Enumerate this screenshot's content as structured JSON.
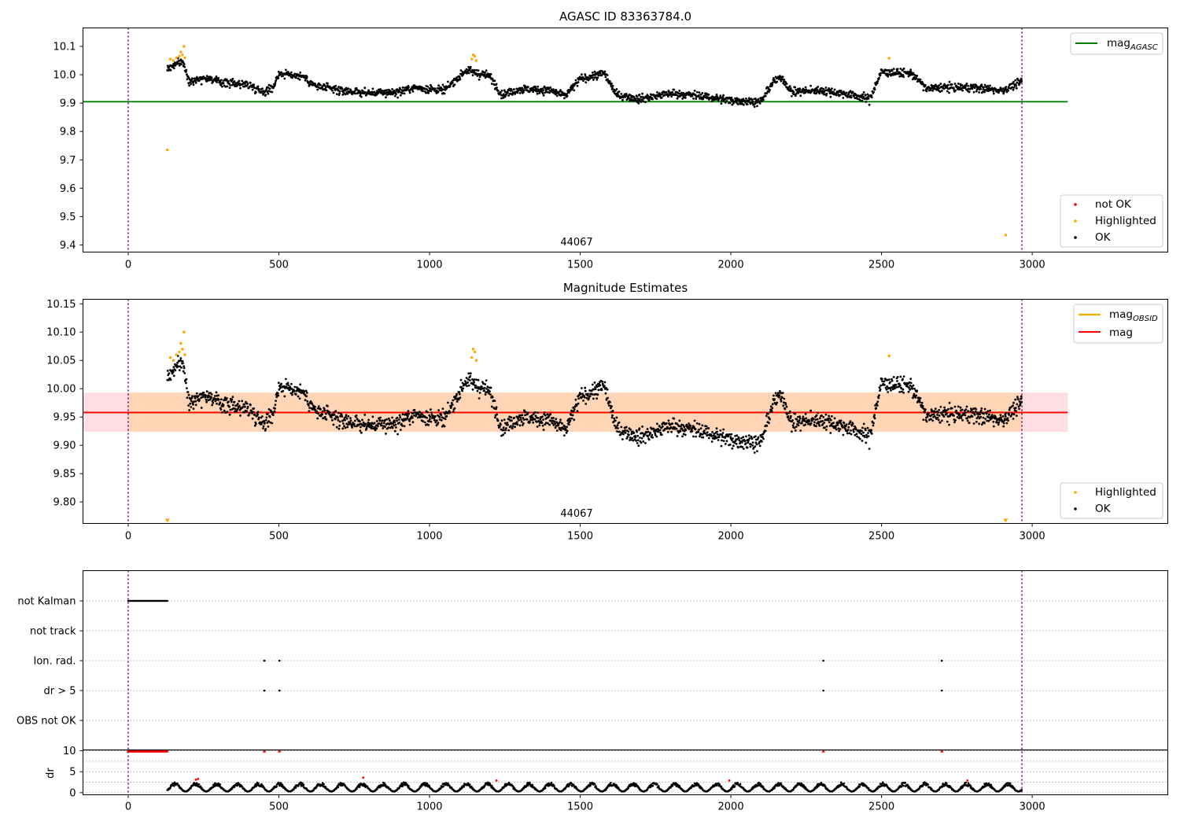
{
  "figure": {
    "panel1": {
      "title": "AGASC ID 83363784.0",
      "obsid_label": "44067",
      "legend_top": [
        "mag"
      ],
      "legend_top_sub": [
        "AGASC"
      ],
      "legend_bottom": [
        "not OK",
        "Highlighted",
        "OK"
      ],
      "xticks": [
        "0",
        "500",
        "1000",
        "1500",
        "2000",
        "2500",
        "3000"
      ],
      "yticks": [
        "9.4",
        "9.5",
        "9.6",
        "9.7",
        "9.8",
        "9.9",
        "10.0",
        "10.1"
      ]
    },
    "panel2": {
      "title": "Magnitude Estimates",
      "obsid_label": "44067",
      "legend_top": [
        "mag",
        "mag"
      ],
      "legend_top_sub": [
        "OBSID",
        ""
      ],
      "legend_bottom": [
        "Highlighted",
        "OK"
      ],
      "xticks": [
        "0",
        "500",
        "1000",
        "1500",
        "2000",
        "2500",
        "3000"
      ],
      "yticks": [
        "9.80",
        "9.85",
        "9.90",
        "9.95",
        "10.00",
        "10.05",
        "10.10",
        "10.15"
      ]
    },
    "panel3": {
      "flag_labels": [
        "not Kalman",
        "not track",
        "Ion. rad.",
        "dr > 5",
        "OBS not OK"
      ],
      "dr_ylabel": "dr",
      "dr_yticks": [
        "0",
        "5",
        "10"
      ],
      "xticks": [
        "0",
        "500",
        "1000",
        "1500",
        "2000",
        "2500",
        "3000"
      ]
    }
  },
  "colors": {
    "ok": "#000000",
    "highlighted": "#ffa500",
    "not_ok": "#ff0000",
    "mag_agasc": "#008000",
    "mag_obsid": "#ffa500",
    "mag": "#ff0000",
    "band_outer": "#ffdde2",
    "band_inner": "#ffd5b5",
    "obs_boundary": "#800080"
  },
  "chart_data": [
    {
      "type": "scatter",
      "title": "AGASC ID 83363784.0",
      "xlabel": "",
      "ylabel": "",
      "xlim": [
        -150,
        3450
      ],
      "ylim": [
        9.375,
        10.165
      ],
      "obsid": "44067",
      "obs_boundaries": [
        0,
        2966
      ],
      "hlines": [
        {
          "name": "mag_AGASC",
          "y": 9.905,
          "x_range": [
            -150,
            3118
          ],
          "color": "#008000"
        }
      ],
      "series": [
        {
          "name": "OK",
          "trend": [
            [
              130,
              10.02
            ],
            [
              180,
              10.05
            ],
            [
              200,
              9.98
            ],
            [
              260,
              9.99
            ],
            [
              300,
              9.975
            ],
            [
              400,
              9.965
            ],
            [
              450,
              9.94
            ],
            [
              480,
              9.955
            ],
            [
              500,
              10.005
            ],
            [
              580,
              9.995
            ],
            [
              620,
              9.96
            ],
            [
              700,
              9.945
            ],
            [
              800,
              9.935
            ],
            [
              900,
              9.94
            ],
            [
              950,
              9.955
            ],
            [
              1050,
              9.945
            ],
            [
              1120,
              10.015
            ],
            [
              1200,
              9.995
            ],
            [
              1240,
              9.93
            ],
            [
              1300,
              9.95
            ],
            [
              1400,
              9.945
            ],
            [
              1450,
              9.925
            ],
            [
              1500,
              9.985
            ],
            [
              1580,
              10.005
            ],
            [
              1620,
              9.93
            ],
            [
              1700,
              9.915
            ],
            [
              1800,
              9.935
            ],
            [
              1900,
              9.925
            ],
            [
              2000,
              9.91
            ],
            [
              2100,
              9.905
            ],
            [
              2140,
              9.975
            ],
            [
              2170,
              9.99
            ],
            [
              2200,
              9.94
            ],
            [
              2300,
              9.945
            ],
            [
              2400,
              9.93
            ],
            [
              2460,
              9.915
            ],
            [
              2500,
              10.01
            ],
            [
              2600,
              10.005
            ],
            [
              2650,
              9.95
            ],
            [
              2700,
              9.955
            ],
            [
              2800,
              9.955
            ],
            [
              2900,
              9.945
            ],
            [
              2966,
              9.975
            ]
          ],
          "noise": 0.012
        },
        {
          "name": "Highlighted",
          "points": [
            [
              130,
              9.735
            ],
            [
              140,
              10.055
            ],
            [
              150,
              10.05
            ],
            [
              160,
              10.06
            ],
            [
              170,
              10.065
            ],
            [
              175,
              10.08
            ],
            [
              180,
              10.07
            ],
            [
              185,
              10.1
            ],
            [
              188,
              10.06
            ],
            [
              1140,
              10.055
            ],
            [
              1145,
              10.07
            ],
            [
              1150,
              10.065
            ],
            [
              1155,
              10.05
            ],
            [
              2525,
              10.058
            ],
            [
              2912,
              9.435
            ]
          ]
        },
        {
          "name": "not OK",
          "points": []
        }
      ]
    },
    {
      "type": "scatter",
      "title": "Magnitude Estimates",
      "xlabel": "",
      "ylabel": "",
      "xlim": [
        -150,
        3450
      ],
      "ylim": [
        9.762,
        10.158
      ],
      "obsid": "44067",
      "obs_boundaries": [
        0,
        2966
      ],
      "hlines": [
        {
          "name": "mag_OBSID",
          "y": 9.958,
          "x_range": [
            -150,
            3118
          ],
          "color": "#ffa500"
        },
        {
          "name": "mag",
          "y": 9.958,
          "x_range": [
            -150,
            3118
          ],
          "color": "#ff0000"
        }
      ],
      "bands": [
        {
          "name": "mag range",
          "y": [
            9.924,
            9.993
          ],
          "x_range": [
            -150,
            3118
          ],
          "color": "#ffdde2"
        },
        {
          "name": "mag_OBSID range",
          "y": [
            9.924,
            9.993
          ],
          "x_range": [
            0,
            2966
          ],
          "color": "#ffd5b5"
        }
      ],
      "series": [
        {
          "name": "OK",
          "trend": [
            [
              130,
              10.02
            ],
            [
              180,
              10.05
            ],
            [
              200,
              9.98
            ],
            [
              260,
              9.99
            ],
            [
              300,
              9.975
            ],
            [
              400,
              9.965
            ],
            [
              450,
              9.94
            ],
            [
              480,
              9.955
            ],
            [
              500,
              10.005
            ],
            [
              580,
              9.995
            ],
            [
              620,
              9.96
            ],
            [
              700,
              9.945
            ],
            [
              800,
              9.935
            ],
            [
              900,
              9.94
            ],
            [
              950,
              9.955
            ],
            [
              1050,
              9.945
            ],
            [
              1120,
              10.015
            ],
            [
              1200,
              9.995
            ],
            [
              1240,
              9.93
            ],
            [
              1300,
              9.95
            ],
            [
              1400,
              9.945
            ],
            [
              1450,
              9.925
            ],
            [
              1500,
              9.985
            ],
            [
              1580,
              10.005
            ],
            [
              1620,
              9.93
            ],
            [
              1700,
              9.915
            ],
            [
              1800,
              9.935
            ],
            [
              1900,
              9.925
            ],
            [
              2000,
              9.91
            ],
            [
              2100,
              9.905
            ],
            [
              2140,
              9.975
            ],
            [
              2170,
              9.99
            ],
            [
              2200,
              9.94
            ],
            [
              2300,
              9.945
            ],
            [
              2400,
              9.93
            ],
            [
              2460,
              9.915
            ],
            [
              2500,
              10.01
            ],
            [
              2600,
              10.005
            ],
            [
              2650,
              9.95
            ],
            [
              2700,
              9.955
            ],
            [
              2800,
              9.955
            ],
            [
              2900,
              9.945
            ],
            [
              2966,
              9.975
            ]
          ],
          "noise": 0.012
        },
        {
          "name": "Highlighted",
          "points": [
            [
              140,
              10.055
            ],
            [
              150,
              10.05
            ],
            [
              160,
              10.06
            ],
            [
              170,
              10.065
            ],
            [
              175,
              10.08
            ],
            [
              180,
              10.07
            ],
            [
              185,
              10.1
            ],
            [
              188,
              10.06
            ],
            [
              1140,
              10.055
            ],
            [
              1145,
              10.07
            ],
            [
              1150,
              10.065
            ],
            [
              1155,
              10.05
            ],
            [
              2525,
              10.058
            ]
          ]
        },
        {
          "name": "Highlighted (off-scale, below)",
          "points": [
            [
              130,
              9.765
            ],
            [
              2912,
              9.765
            ]
          ]
        }
      ]
    },
    {
      "type": "scatter",
      "title": "",
      "xlim": [
        -150,
        3450
      ],
      "categories": [
        "not Kalman",
        "not track",
        "Ion. rad.",
        "dr > 5",
        "OBS not OK"
      ],
      "flags": {
        "not Kalman": [
          [
            0,
            130
          ]
        ],
        "not track": [],
        "Ion. rad.": [
          452,
          502,
          2307,
          2700
        ],
        "dr > 5": [
          452,
          502,
          2307,
          2700
        ],
        "OBS not OK": []
      },
      "obs_boundaries": [
        0,
        2966
      ]
    },
    {
      "type": "scatter",
      "title": "",
      "ylabel": "dr",
      "xlim": [
        -150,
        3450
      ],
      "ylim": [
        -0.5,
        10.2
      ],
      "series": [
        {
          "name": "dr",
          "x_range": [
            130,
            2966
          ],
          "typical": [
            0.3,
            2.5
          ]
        },
        {
          "name": "dr (clipped > 10)",
          "points": [
            [
              0,
              10
            ],
            [
              130,
              10
            ],
            [
              452,
              10
            ],
            [
              502,
              10
            ],
            [
              2307,
              10
            ],
            [
              2700,
              10
            ]
          ]
        },
        {
          "name": "dr outliers",
          "points": [
            [
              225,
              3.1
            ],
            [
              232,
              3.3
            ],
            [
              780,
              3.6
            ],
            [
              1222,
              2.9
            ],
            [
              1995,
              2.9
            ],
            [
              2785,
              2.9
            ]
          ]
        }
      ]
    }
  ]
}
